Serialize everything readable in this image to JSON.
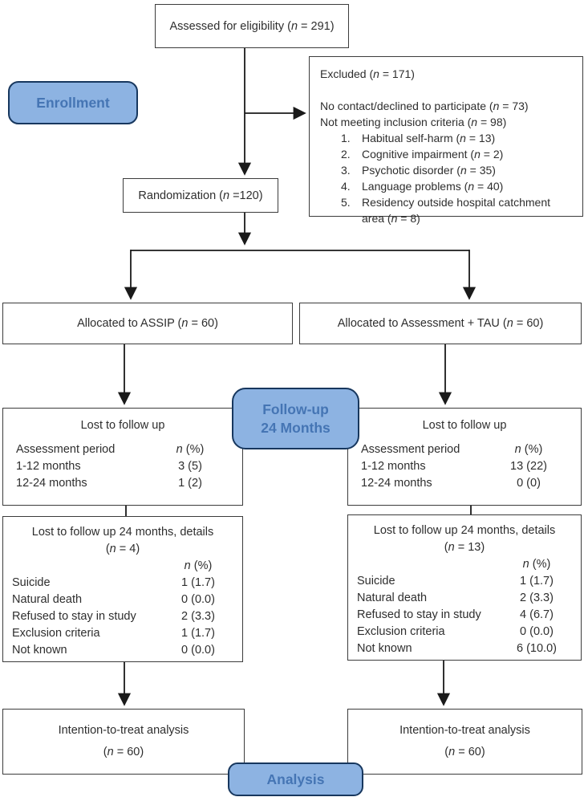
{
  "eligibility": {
    "label": "Assessed for eligibility (n = 291)"
  },
  "enrollment_badge": "Enrollment",
  "excluded": {
    "title": "Excluded (n = 171)",
    "lines": [
      "No contact/declined to participate (n = 73)",
      "Not meeting inclusion criteria (n = 98)"
    ],
    "reasons": [
      {
        "num": "1.",
        "text": "Habitual self-harm (n = 13)"
      },
      {
        "num": "2.",
        "text": "Cognitive impairment (n = 2)"
      },
      {
        "num": "3.",
        "text": "Psychotic disorder (n = 35)"
      },
      {
        "num": "4.",
        "text": "Language problems (n = 40)"
      },
      {
        "num": "5.",
        "text": "Residency outside hospital catchment area (n = 8)"
      }
    ]
  },
  "randomization": {
    "label": "Randomization (n =120)"
  },
  "allocation_left": {
    "label": "Allocated to ASSIP (n = 60)"
  },
  "allocation_right": {
    "label": "Allocated to Assessment + TAU (n = 60)"
  },
  "followup_badge": {
    "line1": "Follow-up",
    "line2": "24 Months"
  },
  "lost_left": {
    "title": "Lost to follow up",
    "header": {
      "label": "Assessment period",
      "value": "n (%)"
    },
    "rows": [
      {
        "label": "1-12 months",
        "value": "3 (5)"
      },
      {
        "label": "12-24 months",
        "value": "1 (2)"
      }
    ]
  },
  "lost_right": {
    "title": "Lost to follow up",
    "header": {
      "label": "Assessment period",
      "value": "n (%)"
    },
    "rows": [
      {
        "label": "1-12 months",
        "value": "13 (22)"
      },
      {
        "label": "12-24 months",
        "value": "0 (0)"
      }
    ]
  },
  "details_left": {
    "title": "Lost to follow up 24 months, details",
    "subtitle": "(n = 4)",
    "col_header": "n (%)",
    "rows": [
      {
        "label": "Suicide",
        "value": "1 (1.7)"
      },
      {
        "label": "Natural death",
        "value": "0 (0.0)"
      },
      {
        "label": "Refused to stay in study",
        "value": "2 (3.3)"
      },
      {
        "label": "Exclusion criteria",
        "value": "1 (1.7)"
      },
      {
        "label": "Not known",
        "value": "0 (0.0)"
      }
    ]
  },
  "details_right": {
    "title": "Lost to follow up 24 months, details",
    "subtitle": "(n = 13)",
    "col_header": "n (%)",
    "rows": [
      {
        "label": "Suicide",
        "value": "1 (1.7)"
      },
      {
        "label": "Natural death",
        "value": "2 (3.3)"
      },
      {
        "label": "Refused to stay in study",
        "value": "4 (6.7)"
      },
      {
        "label": "Exclusion criteria",
        "value": "0 (0.0)"
      },
      {
        "label": "Not known",
        "value": "6 (10.0)"
      }
    ]
  },
  "itt_left": {
    "line1": "Intention-to-treat analysis",
    "line2": "(n = 60)"
  },
  "itt_right": {
    "line1": "Intention-to-treat analysis",
    "line2": "(n = 60)"
  },
  "analysis_badge": "Analysis",
  "colors": {
    "badge_fill": "#8DB3E2",
    "badge_border": "#17375E",
    "badge_text": "#4575B4",
    "box_border": "#3C3C3C",
    "arrow": "#1A1A1A"
  }
}
